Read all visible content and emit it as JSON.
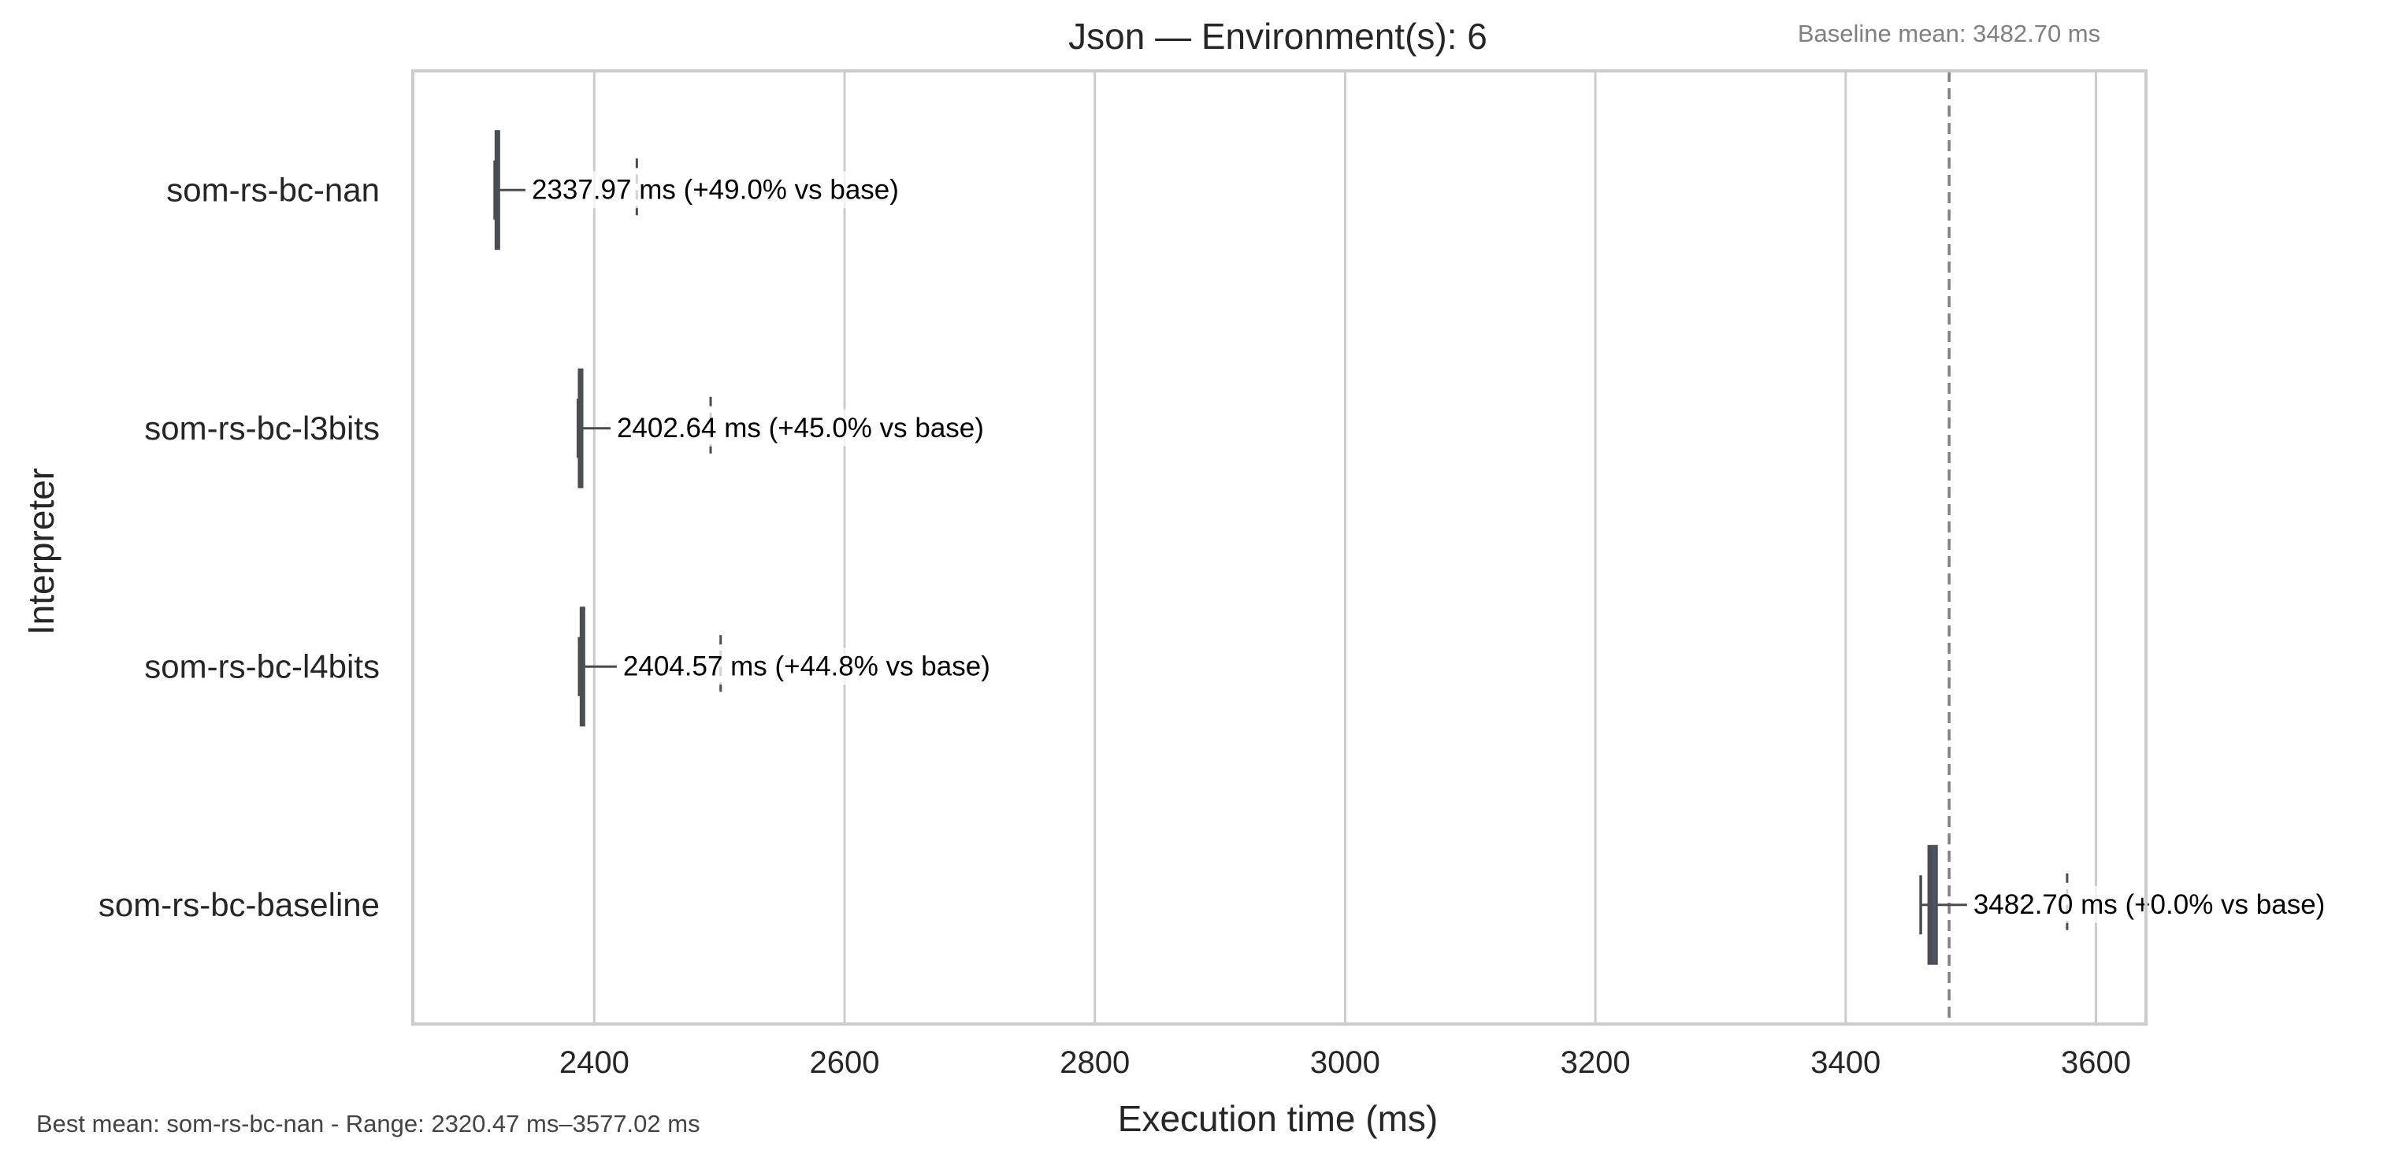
{
  "chart_data": {
    "type": "boxplot",
    "orientation": "horizontal",
    "title": "Json — Environment(s): 6",
    "xlabel": "Execution time (ms)",
    "ylabel": "Interpreter",
    "xlim": [
      2255,
      3640
    ],
    "xticks": [
      2400,
      2600,
      2800,
      3000,
      3200,
      3400,
      3600
    ],
    "x_tick_labels": [
      "2400",
      "2600",
      "2800",
      "3000",
      "3200",
      "3400",
      "3600"
    ],
    "grid": "vertical",
    "baseline_mean": 3482.7,
    "baseline_label": "Baseline mean: 3482.70 ms",
    "footer_text": "Best mean: som-rs-bc-nan - Range: 2320.47 ms–3577.02 ms",
    "categories": [
      "som-rs-bc-nan",
      "som-rs-bc-l3bits",
      "som-rs-bc-l4bits",
      "som-rs-bc-baseline"
    ],
    "series": [
      {
        "category": "som-rs-bc-nan",
        "whisker_low": 2320.5,
        "q1": 2321,
        "median": 2322,
        "q3": 2323,
        "whisker_high": 2345,
        "outlier": 2434,
        "mean": 2337.97,
        "label": "2337.97 ms  (+49.0% vs base)"
      },
      {
        "category": "som-rs-bc-l3bits",
        "whisker_low": 2387,
        "q1": 2387.5,
        "median": 2388,
        "q3": 2389,
        "whisker_high": 2413,
        "outlier": 2493,
        "mean": 2402.64,
        "label": "2402.64 ms  (+45.0% vs base)"
      },
      {
        "category": "som-rs-bc-l4bits",
        "whisker_low": 2388,
        "q1": 2389,
        "median": 2390,
        "q3": 2392,
        "whisker_high": 2418,
        "outlier": 2501,
        "mean": 2404.57,
        "label": "2404.57 ms  (+44.8% vs base)"
      },
      {
        "category": "som-rs-bc-baseline",
        "whisker_low": 3460,
        "q1": 3466,
        "median": 3468,
        "q3": 3473,
        "whisker_high": 3497,
        "outlier": 3577,
        "mean": 3482.7,
        "label": "3482.70 ms  (+0.0% vs base)"
      }
    ],
    "colors": {
      "axes": "#cccccc",
      "grid": "#cccccc",
      "box": "#4a5468",
      "whisker": "#4c4c4c",
      "baseline_line": "#808080",
      "text": "#262626",
      "annotation": "#000000",
      "muted_text": "#808080",
      "footer_text": "#444444"
    }
  }
}
